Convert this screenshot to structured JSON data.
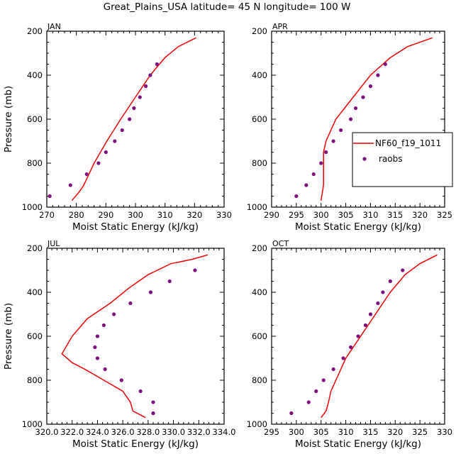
{
  "figure": {
    "title": "Great_Plains_USA   latitude= 45 N longitude= 100 W"
  },
  "colors": {
    "model_line": "#ee0000",
    "raobs_marker": "#7f0f7f",
    "axes": "#000000"
  },
  "legend": {
    "model_label": "NF60_f19_1011",
    "raobs_label": "raobs"
  },
  "chart_data": [
    {
      "type": "line",
      "panel_label": "JAN",
      "xlabel": "Moist Static Energy (kJ/kg)",
      "ylabel": "Pressure (mb)",
      "xlim": [
        270,
        330
      ],
      "ylim": [
        1000,
        200
      ],
      "x_ticks": [
        270,
        280,
        290,
        300,
        310,
        320,
        330
      ],
      "x_tick_labels": [
        "270",
        "280",
        "290",
        "300",
        "310",
        "320",
        "330"
      ],
      "y_ticks": [
        200,
        400,
        600,
        800,
        1000
      ],
      "y_tick_labels": [
        "200",
        "400",
        "600",
        "800",
        "1000"
      ],
      "legend": false,
      "series": [
        {
          "name": "NF60_f19_1011",
          "kind": "line",
          "points": [
            [
              320.5,
              230
            ],
            [
              314.5,
              270
            ],
            [
              310,
              320
            ],
            [
              305,
              400
            ],
            [
              300,
              500
            ],
            [
              295,
              600
            ],
            [
              290.3,
              700
            ],
            [
              286,
              800
            ],
            [
              282.5,
              900
            ],
            [
              281,
              930
            ],
            [
              278.5,
              970
            ]
          ]
        },
        {
          "name": "raobs",
          "kind": "scatter",
          "points": [
            [
              307.3,
              350
            ],
            [
              305,
              400
            ],
            [
              303.5,
              450
            ],
            [
              301.5,
              500
            ],
            [
              299.5,
              550
            ],
            [
              298,
              600
            ],
            [
              295.5,
              650
            ],
            [
              293,
              700
            ],
            [
              290,
              750
            ],
            [
              287.5,
              800
            ],
            [
              283.5,
              850
            ],
            [
              278,
              900
            ],
            [
              271,
              950
            ]
          ]
        }
      ]
    },
    {
      "type": "line",
      "panel_label": "APR",
      "xlabel": "Moist Static Energy (kJ/kg)",
      "ylabel": "",
      "xlim": [
        290,
        325
      ],
      "ylim": [
        1000,
        200
      ],
      "x_ticks": [
        290,
        295,
        300,
        305,
        310,
        315,
        320,
        325
      ],
      "x_tick_labels": [
        "290",
        "295",
        "300",
        "305",
        "310",
        "315",
        "320",
        "325"
      ],
      "y_ticks": [
        200,
        400,
        600,
        800,
        1000
      ],
      "y_tick_labels": [
        "200",
        "400",
        "600",
        "800",
        "1000"
      ],
      "legend": true,
      "series": [
        {
          "name": "NF60_f19_1011",
          "kind": "line",
          "points": [
            [
              322.5,
              230
            ],
            [
              317.5,
              270
            ],
            [
              314,
              320
            ],
            [
              310,
              400
            ],
            [
              306.5,
              500
            ],
            [
              303,
              600
            ],
            [
              301,
              700
            ],
            [
              300.5,
              750
            ],
            [
              300.5,
              800
            ],
            [
              300.5,
              900
            ],
            [
              300,
              970
            ]
          ]
        },
        {
          "name": "raobs",
          "kind": "scatter",
          "points": [
            [
              313,
              350
            ],
            [
              311.5,
              400
            ],
            [
              310,
              450
            ],
            [
              308.5,
              500
            ],
            [
              307,
              550
            ],
            [
              306,
              600
            ],
            [
              304,
              650
            ],
            [
              302.5,
              700
            ],
            [
              301,
              750
            ],
            [
              300,
              800
            ],
            [
              298.5,
              850
            ],
            [
              297,
              900
            ],
            [
              295,
              950
            ]
          ]
        }
      ]
    },
    {
      "type": "line",
      "panel_label": "JUL",
      "xlabel": "Moist Static Energy (kJ/kg)",
      "ylabel": "Pressure (mb)",
      "xlim": [
        320.0,
        334.0
      ],
      "ylim": [
        1000,
        200
      ],
      "x_ticks": [
        320.0,
        322.0,
        324.0,
        326.0,
        328.0,
        330.0,
        332.0,
        334.0
      ],
      "x_tick_labels": [
        "320.0",
        "322.0",
        "324.0",
        "326.0",
        "328.0",
        "330.0",
        "332.0",
        "334.0"
      ],
      "y_ticks": [
        200,
        400,
        600,
        800,
        1000
      ],
      "y_tick_labels": [
        "200",
        "400",
        "600",
        "800",
        "1000"
      ],
      "legend": false,
      "series": [
        {
          "name": "NF60_f19_1011",
          "kind": "line",
          "points": [
            [
              332.7,
              230
            ],
            [
              331.5,
              250
            ],
            [
              329.8,
              270
            ],
            [
              328,
              320
            ],
            [
              326.5,
              380
            ],
            [
              325,
              450
            ],
            [
              323.2,
              520
            ],
            [
              322,
              600
            ],
            [
              321.2,
              680
            ],
            [
              322,
              720
            ],
            [
              323,
              750
            ],
            [
              324.5,
              800
            ],
            [
              326,
              850
            ],
            [
              326.6,
              900
            ],
            [
              326.8,
              940
            ],
            [
              327.8,
              970
            ]
          ]
        },
        {
          "name": "raobs",
          "kind": "scatter",
          "points": [
            [
              331.7,
              300
            ],
            [
              329.7,
              350
            ],
            [
              328.2,
              400
            ],
            [
              326.6,
              450
            ],
            [
              325.3,
              500
            ],
            [
              324.5,
              550
            ],
            [
              324,
              600
            ],
            [
              323.8,
              650
            ],
            [
              324,
              700
            ],
            [
              324.6,
              750
            ],
            [
              325.9,
              800
            ],
            [
              327.4,
              850
            ],
            [
              328.4,
              900
            ],
            [
              328.4,
              950
            ]
          ]
        }
      ]
    },
    {
      "type": "line",
      "panel_label": "OCT",
      "xlabel": "Moist Static Energy (kJ/kg)",
      "ylabel": "",
      "xlim": [
        295,
        330
      ],
      "ylim": [
        1000,
        200
      ],
      "x_ticks": [
        295,
        300,
        305,
        310,
        315,
        320,
        325,
        330
      ],
      "x_tick_labels": [
        "295",
        "300",
        "305",
        "310",
        "315",
        "320",
        "325",
        "330"
      ],
      "y_ticks": [
        200,
        400,
        600,
        800,
        1000
      ],
      "y_tick_labels": [
        "200",
        "400",
        "600",
        "800",
        "1000"
      ],
      "legend": false,
      "series": [
        {
          "name": "NF60_f19_1011",
          "kind": "line",
          "points": [
            [
              328.5,
              230
            ],
            [
              325,
              270
            ],
            [
              322,
              320
            ],
            [
              319,
              400
            ],
            [
              316,
              500
            ],
            [
              313,
              600
            ],
            [
              310,
              700
            ],
            [
              308,
              800
            ],
            [
              307,
              850
            ],
            [
              306.5,
              900
            ],
            [
              306,
              940
            ],
            [
              305,
              970
            ]
          ]
        },
        {
          "name": "raobs",
          "kind": "scatter",
          "points": [
            [
              321.5,
              300
            ],
            [
              319,
              350
            ],
            [
              317.5,
              400
            ],
            [
              316.5,
              450
            ],
            [
              315,
              500
            ],
            [
              314,
              550
            ],
            [
              312.5,
              600
            ],
            [
              311,
              650
            ],
            [
              309.5,
              700
            ],
            [
              307.5,
              750
            ],
            [
              305.5,
              800
            ],
            [
              304,
              850
            ],
            [
              302.5,
              900
            ],
            [
              299,
              950
            ]
          ]
        }
      ]
    }
  ]
}
